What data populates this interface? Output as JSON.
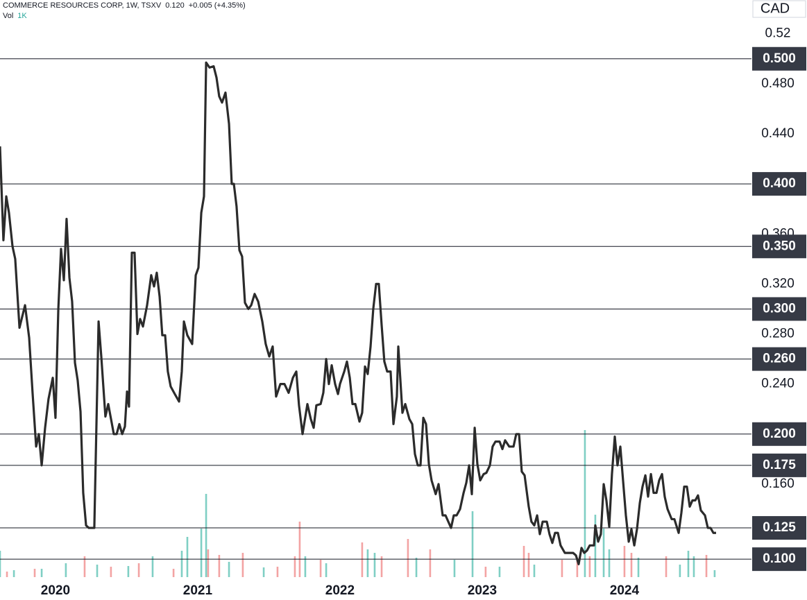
{
  "chart_data": {
    "type": "line",
    "title": "COMMERCE RESOURCES CORP, 1W, TSXV",
    "last": "0.120",
    "change": "+0.005 (+4.35%)",
    "volume_label": "Vol",
    "volume_value": "1K",
    "currency": "CAD",
    "color": "#2b2b2b",
    "xlim": [
      2019.61,
      2024.893
    ],
    "xticks": [
      2020,
      2021,
      2022,
      2023,
      2024
    ],
    "ylim": [
      0.084,
      0.547
    ],
    "yticks": [
      0.52,
      {
        "value": 0.48,
        "label": "0.480"
      },
      {
        "value": 0.44,
        "label": "0.440"
      },
      {
        "value": 0.36,
        "label": "0.360"
      },
      {
        "value": 0.32,
        "label": "0.320"
      },
      {
        "value": 0.28,
        "label": "0.280"
      },
      {
        "value": 0.24,
        "label": "0.240"
      },
      {
        "value": 0.16,
        "label": "0.160"
      }
    ],
    "levels": [
      {
        "value": 0.5,
        "label": "0.500"
      },
      {
        "value": 0.4,
        "label": "0.400"
      },
      {
        "value": 0.35,
        "label": "0.350"
      },
      {
        "value": 0.3,
        "label": "0.300"
      },
      {
        "value": 0.26,
        "label": "0.260"
      },
      {
        "value": 0.2,
        "label": "0.200"
      },
      {
        "value": 0.175,
        "label": "0.175"
      },
      {
        "value": 0.125,
        "label": "0.125"
      },
      {
        "value": 0.1,
        "label": "0.100"
      }
    ],
    "x": [
      2019.61,
      2019.634,
      2019.654,
      2019.673,
      2019.698,
      2019.717,
      2019.747,
      2019.786,
      2019.815,
      2019.839,
      2019.864,
      2019.883,
      2019.903,
      2019.927,
      2019.951,
      2019.981,
      2020.0,
      2020.02,
      2020.039,
      2020.059,
      2020.078,
      2020.098,
      2020.117,
      2020.137,
      2020.156,
      2020.176,
      2020.195,
      2020.215,
      2020.234,
      2020.273,
      2020.303,
      2020.322,
      2020.351,
      2020.371,
      2020.41,
      2020.43,
      2020.449,
      2020.469,
      2020.488,
      2020.503,
      2020.517,
      2020.537,
      2020.556,
      2020.576,
      2020.595,
      2020.615,
      2020.644,
      2020.673,
      2020.693,
      2020.712,
      2020.732,
      2020.751,
      2020.771,
      2020.79,
      2020.81,
      2020.839,
      2020.869,
      2020.888,
      2020.903,
      2020.927,
      2020.961,
      2020.986,
      2021.005,
      2021.025,
      2021.044,
      2021.059,
      2021.083,
      2021.112,
      2021.132,
      2021.151,
      2021.171,
      2021.195,
      2021.22,
      2021.239,
      2021.254,
      2021.273,
      2021.293,
      2021.312,
      2021.332,
      2021.356,
      2021.376,
      2021.4,
      2021.425,
      2021.454,
      2021.478,
      2021.503,
      2021.527,
      2021.551,
      2021.581,
      2021.61,
      2021.639,
      2021.669,
      2021.693,
      2021.712,
      2021.737,
      2021.771,
      2021.795,
      2021.815,
      2021.834,
      2021.864,
      2021.883,
      2021.903,
      2021.922,
      2021.942,
      2021.966,
      2021.986,
      2022.0,
      2022.03,
      2022.049,
      2022.069,
      2022.088,
      2022.108,
      2022.137,
      2022.156,
      2022.176,
      2022.195,
      2022.215,
      2022.234,
      2022.254,
      2022.273,
      2022.293,
      2022.312,
      2022.332,
      2022.356,
      2022.376,
      2022.4,
      2022.41,
      2022.439,
      2022.459,
      2022.488,
      2022.508,
      2022.527,
      2022.547,
      2022.566,
      2022.586,
      2022.605,
      2022.625,
      2022.644,
      2022.673,
      2022.693,
      2022.722,
      2022.742,
      2022.781,
      2022.8,
      2022.82,
      2022.844,
      2022.869,
      2022.888,
      2022.908,
      2022.927,
      2022.947,
      2022.966,
      2022.986,
      2023.01,
      2023.029,
      2023.054,
      2023.073,
      2023.093,
      2023.122,
      2023.142,
      2023.161,
      2023.19,
      2023.22,
      2023.239,
      2023.259,
      2023.278,
      2023.298,
      2023.327,
      2023.346,
      2023.366,
      2023.386,
      2023.405,
      2023.425,
      2023.454,
      2023.473,
      2023.493,
      2023.512,
      2023.532,
      2023.551,
      2023.581,
      2023.61,
      2023.639,
      2023.659,
      2023.678,
      2023.698,
      2023.717,
      2023.737,
      2023.756,
      2023.786,
      2023.795,
      2023.815,
      2023.834,
      2023.854,
      2023.873,
      2023.893,
      2023.912,
      2023.932,
      2023.951,
      2023.971,
      2023.99,
      2024.01,
      2024.03,
      2024.049,
      2024.069,
      2024.088,
      2024.108,
      2024.127,
      2024.147,
      2024.166,
      2024.186,
      2024.205,
      2024.225,
      2024.244,
      2024.264,
      2024.283,
      2024.303,
      2024.332,
      2024.351,
      2024.381,
      2024.4,
      2024.42,
      2024.439,
      2024.459,
      2024.478,
      2024.498,
      2024.517,
      2024.537,
      2024.566,
      2024.586,
      2024.605,
      2024.625,
      2024.644
    ],
    "values": [
      0.43,
      0.355,
      0.39,
      0.377,
      0.35,
      0.34,
      0.285,
      0.303,
      0.277,
      0.233,
      0.19,
      0.2,
      0.175,
      0.205,
      0.228,
      0.245,
      0.213,
      0.3,
      0.348,
      0.323,
      0.372,
      0.325,
      0.306,
      0.257,
      0.243,
      0.218,
      0.153,
      0.127,
      0.125,
      0.125,
      0.29,
      0.262,
      0.214,
      0.224,
      0.2,
      0.2,
      0.208,
      0.2,
      0.206,
      0.234,
      0.222,
      0.345,
      0.345,
      0.28,
      0.292,
      0.286,
      0.303,
      0.327,
      0.318,
      0.329,
      0.31,
      0.279,
      0.279,
      0.25,
      0.238,
      0.232,
      0.226,
      0.25,
      0.29,
      0.279,
      0.272,
      0.327,
      0.333,
      0.377,
      0.39,
      0.497,
      0.493,
      0.494,
      0.485,
      0.47,
      0.465,
      0.473,
      0.448,
      0.4,
      0.4,
      0.382,
      0.347,
      0.342,
      0.305,
      0.3,
      0.303,
      0.312,
      0.306,
      0.29,
      0.272,
      0.262,
      0.27,
      0.23,
      0.24,
      0.24,
      0.233,
      0.245,
      0.25,
      0.223,
      0.2,
      0.224,
      0.212,
      0.205,
      0.223,
      0.224,
      0.233,
      0.26,
      0.24,
      0.255,
      0.24,
      0.232,
      0.24,
      0.25,
      0.258,
      0.245,
      0.224,
      0.224,
      0.21,
      0.217,
      0.254,
      0.248,
      0.27,
      0.3,
      0.32,
      0.32,
      0.287,
      0.258,
      0.25,
      0.25,
      0.208,
      0.23,
      0.27,
      0.217,
      0.224,
      0.212,
      0.208,
      0.184,
      0.175,
      0.175,
      0.213,
      0.208,
      0.176,
      0.163,
      0.152,
      0.16,
      0.135,
      0.135,
      0.125,
      0.135,
      0.135,
      0.14,
      0.153,
      0.161,
      0.175,
      0.152,
      0.205,
      0.176,
      0.163,
      0.168,
      0.169,
      0.175,
      0.19,
      0.194,
      0.194,
      0.188,
      0.195,
      0.19,
      0.19,
      0.2,
      0.2,
      0.17,
      0.167,
      0.142,
      0.13,
      0.127,
      0.135,
      0.12,
      0.13,
      0.13,
      0.12,
      0.113,
      0.121,
      0.121,
      0.111,
      0.105,
      0.105,
      0.105,
      0.103,
      0.096,
      0.109,
      0.105,
      0.107,
      0.111,
      0.111,
      0.127,
      0.114,
      0.12,
      0.16,
      0.147,
      0.126,
      0.168,
      0.198,
      0.175,
      0.19,
      0.163,
      0.135,
      0.114,
      0.124,
      0.111,
      0.124,
      0.145,
      0.158,
      0.167,
      0.15,
      0.168,
      0.153,
      0.153,
      0.163,
      0.168,
      0.15,
      0.14,
      0.132,
      0.132,
      0.121,
      0.137,
      0.158,
      0.158,
      0.142,
      0.147,
      0.147,
      0.151,
      0.139,
      0.135,
      0.125,
      0.125,
      0.121,
      0.121
    ],
    "volume": {
      "lim": [
        0,
        250
      ],
      "up": {
        "color": "#7fcfc4",
        "x": [
          2019.61,
          2019.708,
          2019.903,
          2020.073,
          2020.293,
          2020.512,
          2020.683,
          2020.888,
          2020.927,
          2021.025,
          2021.059,
          2021.22,
          2021.464,
          2021.756,
          2021.903,
          2022.195,
          2022.244,
          2022.537,
          2022.805,
          2022.932,
          2023.122,
          2023.366,
          2023.722,
          2023.795,
          2023.854,
          2023.893,
          2024.098,
          2024.39,
          2024.449,
          2024.488,
          2024.634
        ],
        "values": [
          38,
          10,
          12,
          20,
          18,
          16,
          30,
          38,
          58,
          70,
          120,
          22,
          14,
          30,
          20,
          40,
          35,
          28,
          25,
          95,
          15,
          18,
          212,
          90,
          70,
          40,
          28,
          18,
          38,
          30,
          10
        ]
      },
      "down": {
        "color": "#f3a3a3",
        "x": [
          2019.659,
          2019.854,
          2020.205,
          2020.39,
          2020.586,
          2020.83,
          2021.073,
          2021.151,
          2021.317,
          2021.561,
          2021.683,
          2021.717,
          2021.864,
          2022.156,
          2022.293,
          2022.478,
          2022.634,
          2023.024,
          2023.293,
          2023.327,
          2023.561,
          2023.668,
          2023.756,
          2024.0,
          2024.049,
          2024.293,
          2024.576
        ],
        "values": [
          8,
          12,
          30,
          15,
          20,
          12,
          40,
          32,
          35,
          15,
          30,
          80,
          25,
          50,
          30,
          55,
          40,
          15,
          45,
          35,
          25,
          28,
          30,
          45,
          35,
          30,
          32
        ]
      }
    }
  }
}
